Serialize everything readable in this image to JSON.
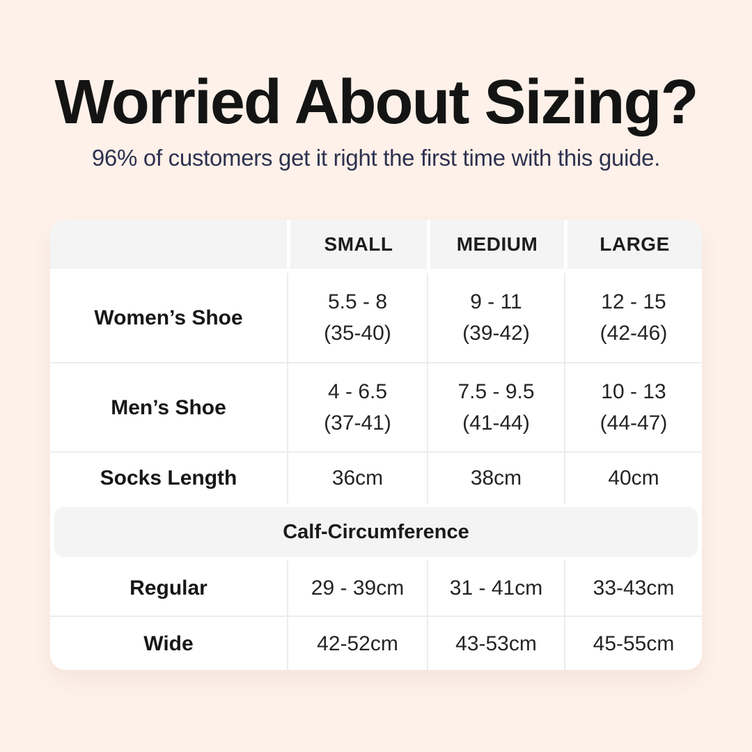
{
  "chart_data": {
    "type": "table",
    "title": "Worried About Sizing?",
    "subtitle": "96% of customers get it right the first time with this guide.",
    "columns": [
      "",
      "SMALL",
      "MEDIUM",
      "LARGE"
    ],
    "rows": [
      {
        "label": "Women’s Shoe",
        "small": [
          "5.5 - 8",
          "(35-40)"
        ],
        "medium": [
          "9 - 11",
          "(39-42)"
        ],
        "large": [
          "12 - 15",
          "(42-46)"
        ]
      },
      {
        "label": "Men’s Shoe",
        "small": [
          "4 - 6.5",
          "(37-41)"
        ],
        "medium": [
          "7.5 - 9.5",
          "(41-44)"
        ],
        "large": [
          "10 - 13",
          "(44-47)"
        ]
      },
      {
        "label": "Socks Length",
        "small": [
          "36cm"
        ],
        "medium": [
          "38cm"
        ],
        "large": [
          "40cm"
        ]
      }
    ],
    "section_header": "Calf-Circumference",
    "calf_rows": [
      {
        "label": "Regular",
        "small": [
          "29 - 39cm"
        ],
        "medium": [
          "31 - 41cm"
        ],
        "large": [
          "33-43cm"
        ]
      },
      {
        "label": "Wide",
        "small": [
          "42-52cm"
        ],
        "medium": [
          "43-53cm"
        ],
        "large": [
          "45-55cm"
        ]
      }
    ],
    "layout_hints": {
      "legend": "none",
      "grid": "table-borders"
    },
    "colors": {
      "page_background": "#fdf1e9",
      "table_background": "#ffffff",
      "header_cell_background": "#f4f4f5",
      "section_banner_background": "#f4f4f5",
      "divider": "#ececec",
      "title_text": "#141414",
      "subtitle_text": "#2e3150",
      "table_text": "#242424"
    }
  }
}
